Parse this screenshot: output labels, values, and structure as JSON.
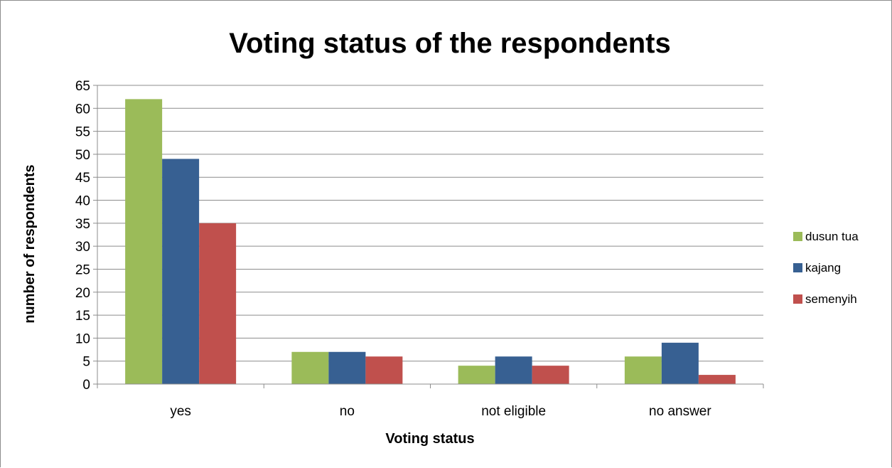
{
  "chart_data": {
    "type": "bar",
    "title": "Voting status of the respondents",
    "xlabel": "Voting status",
    "ylabel": "number of respondents",
    "categories": [
      "yes",
      "no",
      "not eligible",
      "no answer"
    ],
    "series": [
      {
        "name": "dusun tua",
        "color": "#9BBB59",
        "values": [
          62,
          7,
          4,
          6
        ]
      },
      {
        "name": "kajang",
        "color": "#376092",
        "values": [
          49,
          7,
          6,
          9
        ]
      },
      {
        "name": "semenyih",
        "color": "#C0504D",
        "values": [
          35,
          6,
          4,
          2
        ]
      }
    ],
    "ylim": [
      0,
      65
    ],
    "yticks": [
      "0",
      "5",
      "10",
      "15",
      "20",
      "25",
      "30",
      "35",
      "40",
      "45",
      "50",
      "55",
      "60",
      "65"
    ],
    "grid": true,
    "legend_position": "right"
  }
}
